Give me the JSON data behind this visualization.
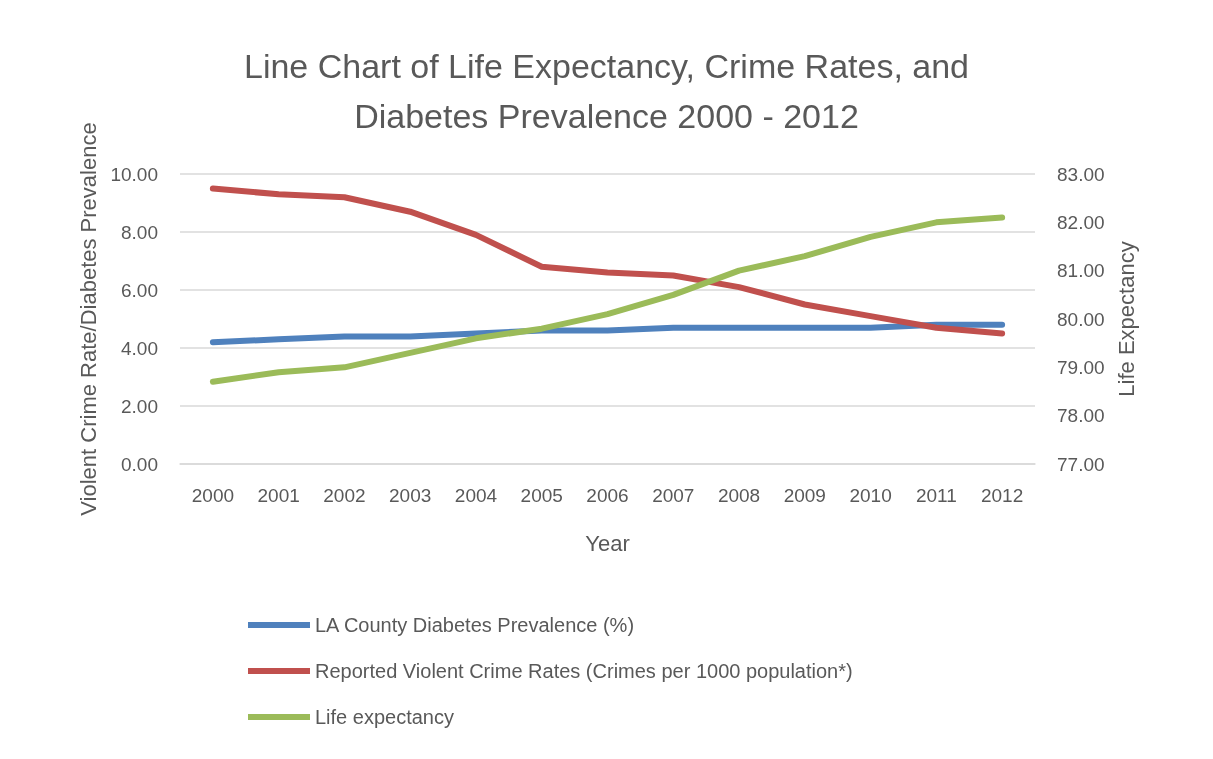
{
  "chart_data": {
    "type": "line",
    "title": "Line Chart of Life Expectancy, Crime Rates, and\nDiabetes Prevalence 2000 - 2012",
    "xlabel": "Year",
    "ylabel": "Violent Crime Rate/Diabetes Prevalence",
    "y2label": "Life Expectancy",
    "categories": [
      "2000",
      "2001",
      "2002",
      "2003",
      "2004",
      "2005",
      "2006",
      "2007",
      "2008",
      "2009",
      "2010",
      "2011",
      "2012"
    ],
    "series": [
      {
        "name": "LA County Diabetes Prevalence (%)",
        "color": "#4f81bd",
        "values": [
          4.2,
          4.3,
          4.4,
          4.4,
          4.5,
          4.6,
          4.6,
          4.7,
          4.7,
          4.7,
          4.7,
          4.8,
          4.8
        ]
      },
      {
        "name": "Reported Violent Crime Rates (Crimes per 1000 population*)",
        "color": "#c0504d",
        "values": [
          9.5,
          9.3,
          9.2,
          8.7,
          7.9,
          6.8,
          6.6,
          6.5,
          6.1,
          5.5,
          5.1,
          4.7,
          4.5
        ]
      },
      {
        "name": "Life expectancy",
        "color": "#9bbb59",
        "axis": "y2",
        "values": [
          78.7,
          78.9,
          79.0,
          79.3,
          79.6,
          79.8,
          80.1,
          80.5,
          81.0,
          81.3,
          81.7,
          82.0,
          82.1
        ]
      }
    ],
    "ylim": [
      0,
      10
    ],
    "yticks": [
      {
        "value": 0,
        "label": "0.00"
      },
      {
        "value": 2,
        "label": "2.00"
      },
      {
        "value": 4,
        "label": "4.00"
      },
      {
        "value": 6,
        "label": "6.00"
      },
      {
        "value": 8,
        "label": "8.00"
      },
      {
        "value": 10,
        "label": "10.00"
      }
    ],
    "y2lim": [
      77,
      83
    ],
    "y2ticks": [
      {
        "value": 77,
        "label": "77.00"
      },
      {
        "value": 78,
        "label": "78.00"
      },
      {
        "value": 79,
        "label": "79.00"
      },
      {
        "value": 80,
        "label": "80.00"
      },
      {
        "value": 81,
        "label": "81.00"
      },
      {
        "value": 82,
        "label": "82.00"
      },
      {
        "value": 83,
        "label": "83.00"
      }
    ],
    "grid": "y",
    "legend": "bottom",
    "marker": "none",
    "line_style": "solid"
  }
}
